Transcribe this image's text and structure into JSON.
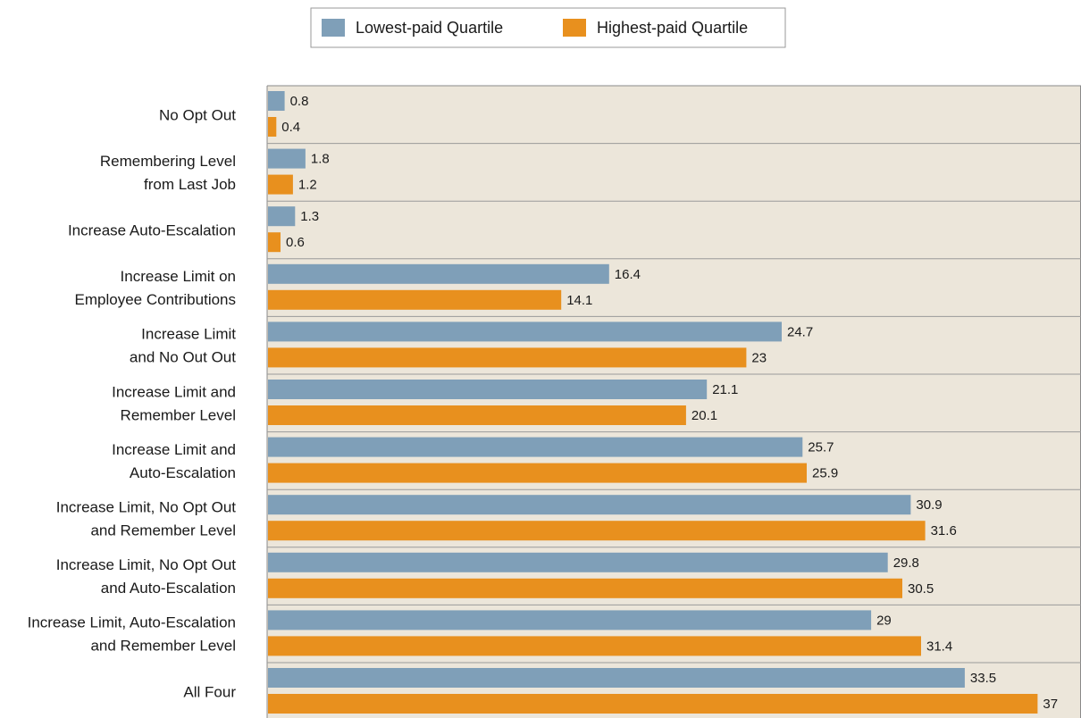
{
  "chart_data": {
    "type": "bar",
    "orientation": "horizontal",
    "categories": [
      [
        "No Opt Out"
      ],
      [
        "Remembering Level",
        "from Last Job"
      ],
      [
        "Increase Auto-Escalation"
      ],
      [
        "Increase Limit on",
        "Employee Contributions"
      ],
      [
        "Increase Limit",
        "and No Out Out"
      ],
      [
        "Increase Limit and",
        "Remember Level"
      ],
      [
        "Increase Limit and",
        "Auto-Escalation"
      ],
      [
        "Increase Limit, No Opt Out",
        "and Remember Level"
      ],
      [
        "Increase Limit, No Opt Out",
        "and Auto-Escalation"
      ],
      [
        "Increase Limit, Auto-Escalation",
        "and Remember Level"
      ],
      [
        "All Four"
      ]
    ],
    "series": [
      {
        "name": "Lowest-paid Quartile",
        "color": "#7f9fb8",
        "values": [
          0.8,
          1.8,
          1.3,
          16.4,
          24.7,
          21.1,
          25.7,
          30.9,
          29.8,
          29,
          33.5
        ],
        "labels": [
          "0.8",
          "1.8",
          "1.3",
          "16.4",
          "24.7",
          "21.1",
          "25.7",
          "30.9",
          "29.8",
          "29",
          "33.5"
        ]
      },
      {
        "name": "Highest-paid Quartile",
        "color": "#e8901e",
        "values": [
          0.4,
          1.2,
          0.6,
          14.1,
          23,
          20.1,
          25.9,
          31.6,
          30.5,
          31.4,
          37
        ],
        "labels": [
          "0.4",
          "1.2",
          "0.6",
          "14.1",
          "23",
          "20.1",
          "25.9",
          "31.6",
          "30.5",
          "31.4",
          "37"
        ]
      }
    ],
    "title": "",
    "xlabel": "",
    "ylabel": "",
    "xlim": [
      0,
      41
    ],
    "grid": false,
    "legend_position": "top-center",
    "plot_background": "#ece6da"
  }
}
